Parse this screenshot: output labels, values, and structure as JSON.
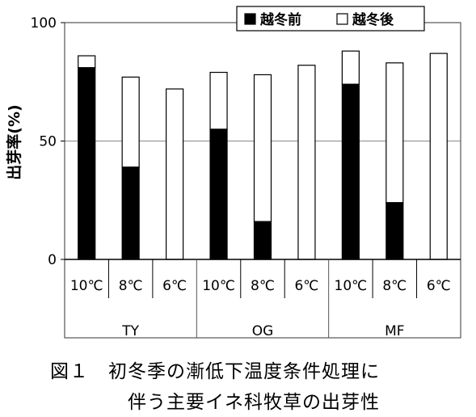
{
  "chart_data": {
    "type": "bar",
    "stacked": true,
    "ylabel": "出芽率(%)",
    "ylim": [
      0,
      100
    ],
    "yticks": [
      "0",
      "50",
      "100"
    ],
    "grid": "horizontal",
    "legend_position": "top-right",
    "categories": [
      "10℃",
      "8℃",
      "6℃",
      "10℃",
      "8℃",
      "6℃",
      "10℃",
      "8℃",
      "6℃"
    ],
    "groups": [
      "TY",
      "OG",
      "MF"
    ],
    "series": [
      {
        "name": "越冬前",
        "color": "#000000",
        "values": [
          81,
          39,
          0,
          55,
          16,
          0,
          74,
          24,
          0
        ]
      },
      {
        "name": "越冬後",
        "color": "#ffffff",
        "values": [
          5,
          38,
          72,
          24,
          62,
          82,
          14,
          59,
          87
        ]
      }
    ]
  },
  "caption": {
    "line1": "図１　初冬季の漸低下温度条件処理に",
    "line2": "伴う主要イネ科牧草の出芽性"
  }
}
